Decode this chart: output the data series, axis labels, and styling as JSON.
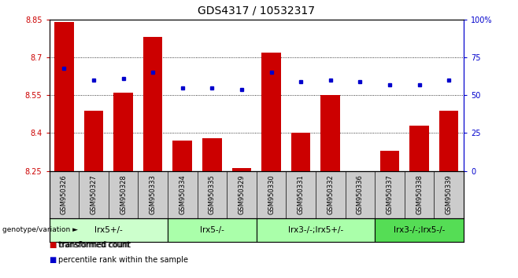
{
  "title": "GDS4317 / 10532317",
  "samples": [
    "GSM950326",
    "GSM950327",
    "GSM950328",
    "GSM950333",
    "GSM950334",
    "GSM950335",
    "GSM950329",
    "GSM950330",
    "GSM950331",
    "GSM950332",
    "GSM950336",
    "GSM950337",
    "GSM950338",
    "GSM950339"
  ],
  "red_values": [
    8.84,
    8.49,
    8.56,
    8.78,
    8.37,
    8.38,
    8.26,
    8.72,
    8.4,
    8.55,
    8.25,
    8.33,
    8.43,
    8.49
  ],
  "blue_values": [
    68,
    60,
    61,
    65,
    55,
    55,
    54,
    65,
    59,
    60,
    59,
    57,
    57,
    60
  ],
  "ylim_left": [
    8.25,
    8.85
  ],
  "ylim_right": [
    0,
    100
  ],
  "yticks_left": [
    8.25,
    8.4,
    8.55,
    8.7,
    8.85
  ],
  "yticks_right": [
    0,
    25,
    50,
    75,
    100
  ],
  "groups": [
    {
      "label": "lrx5+/-",
      "start": 0,
      "end": 4,
      "color": "#ccffcc"
    },
    {
      "label": "lrx5-/-",
      "start": 4,
      "end": 7,
      "color": "#aaffaa"
    },
    {
      "label": "lrx3-/-;lrx5+/-",
      "start": 7,
      "end": 11,
      "color": "#aaffaa"
    },
    {
      "label": "lrx3-/-;lrx5-/-",
      "start": 11,
      "end": 14,
      "color": "#55dd55"
    }
  ],
  "bar_color": "#cc0000",
  "dot_color": "#0000cc",
  "grid_color": "#000000",
  "bg_color": "#ffffff",
  "header_bg": "#cccccc",
  "genotype_label": "genotype/variation",
  "legend_red": "transformed count",
  "legend_blue": "percentile rank within the sample",
  "title_fontsize": 10,
  "tick_fontsize": 7,
  "group_fontsize": 7.5,
  "sample_fontsize": 6
}
